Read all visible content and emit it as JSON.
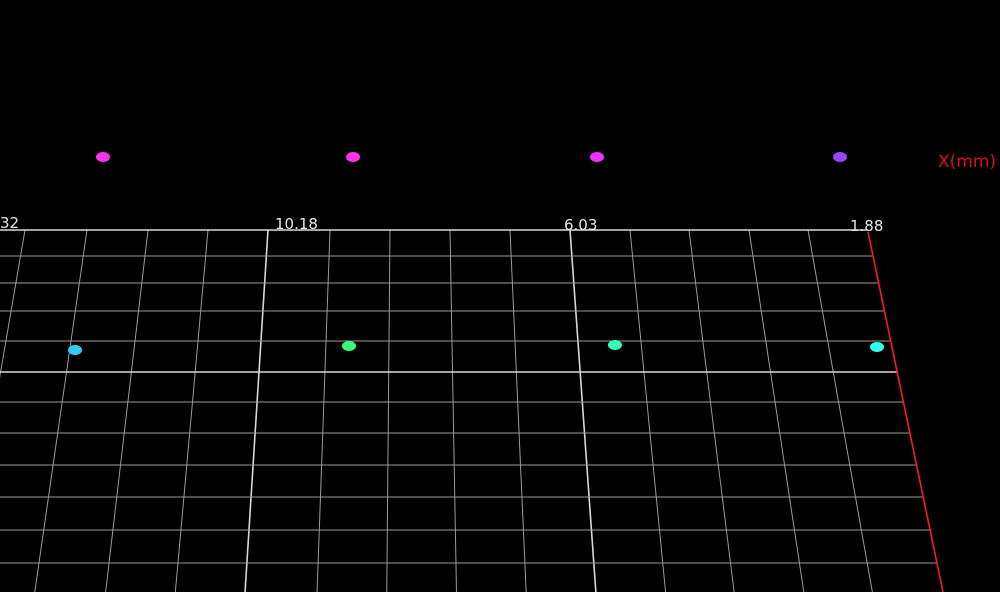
{
  "axis": {
    "title": "X(mm)",
    "tick_labels": [
      "32",
      "10.18",
      "6.03",
      "1.88"
    ]
  }
}
